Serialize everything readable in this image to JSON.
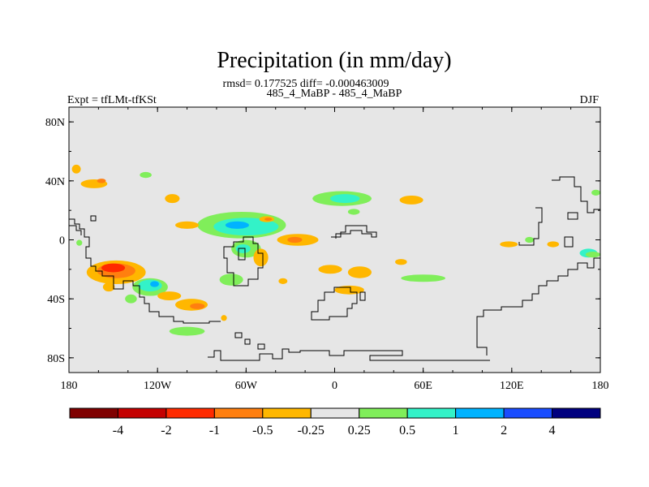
{
  "chart_data": {
    "type": "heatmap",
    "title": "Precipitation (in mm/day)",
    "stats_line": "rmsd= 0.177525 diff= -0.000463009",
    "subtitle": "485_4_MaBP - 485_4_MaBP",
    "left_label": "Expt = tfLMt-tfKSt",
    "right_label": "DJF",
    "x_axis": {
      "range": [
        -180,
        180
      ],
      "ticks": [
        {
          "value": -180,
          "label": "180"
        },
        {
          "value": -120,
          "label": "120W"
        },
        {
          "value": -60,
          "label": "60W"
        },
        {
          "value": 0,
          "label": "0"
        },
        {
          "value": 60,
          "label": "60E"
        },
        {
          "value": 120,
          "label": "120E"
        },
        {
          "value": 180,
          "label": "180"
        }
      ]
    },
    "y_axis": {
      "range": [
        -90,
        90
      ],
      "ticks": [
        {
          "value": 80,
          "label": "80N"
        },
        {
          "value": 40,
          "label": "40N"
        },
        {
          "value": 0,
          "label": "0"
        },
        {
          "value": -40,
          "label": "40S"
        },
        {
          "value": -80,
          "label": "80S"
        }
      ]
    },
    "colorbar": {
      "colors": [
        "#7f0000",
        "#c40000",
        "#ff2a00",
        "#ff7f0f",
        "#ffb700",
        "#e6e6e6",
        "#80ee5a",
        "#33f2c8",
        "#00b3ff",
        "#1a4dff",
        "#00007f"
      ],
      "labels": [
        "-4",
        "-2",
        "-1",
        "-0.5",
        "-0.25",
        "0.25",
        "0.5",
        "1",
        "2",
        "4"
      ]
    },
    "anomaly_regions": [
      {
        "lon": -175,
        "lat": 48,
        "rlon": 3,
        "rlat": 3,
        "category": 4
      },
      {
        "lon": -163,
        "lat": 38,
        "rlon": 9,
        "rlat": 3,
        "category": 4
      },
      {
        "lon": -158,
        "lat": 40,
        "rlon": 3,
        "rlat": 1.5,
        "category": 3
      },
      {
        "lon": -128,
        "lat": 44,
        "rlon": 4,
        "rlat": 2,
        "category": 6
      },
      {
        "lon": -110,
        "lat": 28,
        "rlon": 5,
        "rlat": 3,
        "category": 4
      },
      {
        "lon": -173,
        "lat": -2,
        "rlon": 2,
        "rlat": 2,
        "category": 6
      },
      {
        "lon": -148,
        "lat": -22,
        "rlon": 20,
        "rlat": 8,
        "category": 4
      },
      {
        "lon": -148,
        "lat": -21,
        "rlon": 13,
        "rlat": 5,
        "category": 3
      },
      {
        "lon": -150,
        "lat": -19,
        "rlon": 8,
        "rlat": 3,
        "category": 2
      },
      {
        "lon": -153,
        "lat": -32,
        "rlon": 4,
        "rlat": 3,
        "category": 4
      },
      {
        "lon": -125,
        "lat": -32,
        "rlon": 12,
        "rlat": 6,
        "category": 6
      },
      {
        "lon": -125,
        "lat": -31,
        "rlon": 8,
        "rlat": 4,
        "category": 7
      },
      {
        "lon": -122,
        "lat": -30,
        "rlon": 3,
        "rlat": 2,
        "category": 8
      },
      {
        "lon": -138,
        "lat": -40,
        "rlon": 4,
        "rlat": 3,
        "category": 6
      },
      {
        "lon": -112,
        "lat": -38,
        "rlon": 8,
        "rlat": 3,
        "category": 4
      },
      {
        "lon": -97,
        "lat": -44,
        "rlon": 11,
        "rlat": 4,
        "category": 4
      },
      {
        "lon": -93,
        "lat": -45,
        "rlon": 5,
        "rlat": 2,
        "category": 3
      },
      {
        "lon": -75,
        "lat": -53,
        "rlon": 2,
        "rlat": 2,
        "category": 4
      },
      {
        "lon": -100,
        "lat": -62,
        "rlon": 12,
        "rlat": 3,
        "category": 6
      },
      {
        "lon": -70,
        "lat": -27,
        "rlon": 8,
        "rlat": 4,
        "category": 6
      },
      {
        "lon": -63,
        "lat": 10,
        "rlon": 30,
        "rlat": 9,
        "category": 6
      },
      {
        "lon": -60,
        "lat": 9,
        "rlon": 22,
        "rlat": 6,
        "category": 7
      },
      {
        "lon": -66,
        "lat": 10,
        "rlon": 8,
        "rlat": 2.5,
        "category": 8
      },
      {
        "lon": -100,
        "lat": 10,
        "rlon": 8,
        "rlat": 2.5,
        "category": 4
      },
      {
        "lon": -46,
        "lat": 14,
        "rlon": 5,
        "rlat": 2,
        "category": 4
      },
      {
        "lon": -45,
        "lat": 14,
        "rlon": 2.5,
        "rlat": 1,
        "category": 3
      },
      {
        "lon": -60,
        "lat": -6,
        "rlon": 10,
        "rlat": 6,
        "category": 6
      },
      {
        "lon": -62,
        "lat": -6,
        "rlon": 5,
        "rlat": 3,
        "category": 7
      },
      {
        "lon": -50,
        "lat": -12,
        "rlon": 5,
        "rlat": 6,
        "category": 4
      },
      {
        "lon": -35,
        "lat": -28,
        "rlon": 3,
        "rlat": 2,
        "category": 4
      },
      {
        "lon": -25,
        "lat": 0,
        "rlon": 14,
        "rlat": 4,
        "category": 4
      },
      {
        "lon": -27,
        "lat": 0,
        "rlon": 5,
        "rlat": 2,
        "category": 3
      },
      {
        "lon": 5,
        "lat": 28,
        "rlon": 20,
        "rlat": 5,
        "category": 6
      },
      {
        "lon": 7,
        "lat": 28,
        "rlon": 10,
        "rlat": 3,
        "category": 7
      },
      {
        "lon": 13,
        "lat": 19,
        "rlon": 4,
        "rlat": 2,
        "category": 6
      },
      {
        "lon": 52,
        "lat": 27,
        "rlon": 8,
        "rlat": 3,
        "category": 4
      },
      {
        "lon": -3,
        "lat": -20,
        "rlon": 8,
        "rlat": 3,
        "category": 4
      },
      {
        "lon": 17,
        "lat": -22,
        "rlon": 8,
        "rlat": 4,
        "category": 4
      },
      {
        "lon": 10,
        "lat": -34,
        "rlon": 10,
        "rlat": 3,
        "category": 4
      },
      {
        "lon": 45,
        "lat": -15,
        "rlon": 4,
        "rlat": 2,
        "category": 4
      },
      {
        "lon": 60,
        "lat": -26,
        "rlon": 15,
        "rlat": 2.5,
        "category": 6
      },
      {
        "lon": 118,
        "lat": -3,
        "rlon": 6,
        "rlat": 2,
        "category": 4
      },
      {
        "lon": 132,
        "lat": 0,
        "rlon": 3,
        "rlat": 2,
        "category": 6
      },
      {
        "lon": 148,
        "lat": -3,
        "rlon": 4,
        "rlat": 2,
        "category": 4
      },
      {
        "lon": 172,
        "lat": -9,
        "rlon": 6,
        "rlat": 3,
        "category": 7
      },
      {
        "lon": 175,
        "lat": -10,
        "rlon": 5,
        "rlat": 2,
        "category": 6
      },
      {
        "lon": 177,
        "lat": 32,
        "rlon": 3,
        "rlat": 2,
        "category": 6
      }
    ]
  }
}
